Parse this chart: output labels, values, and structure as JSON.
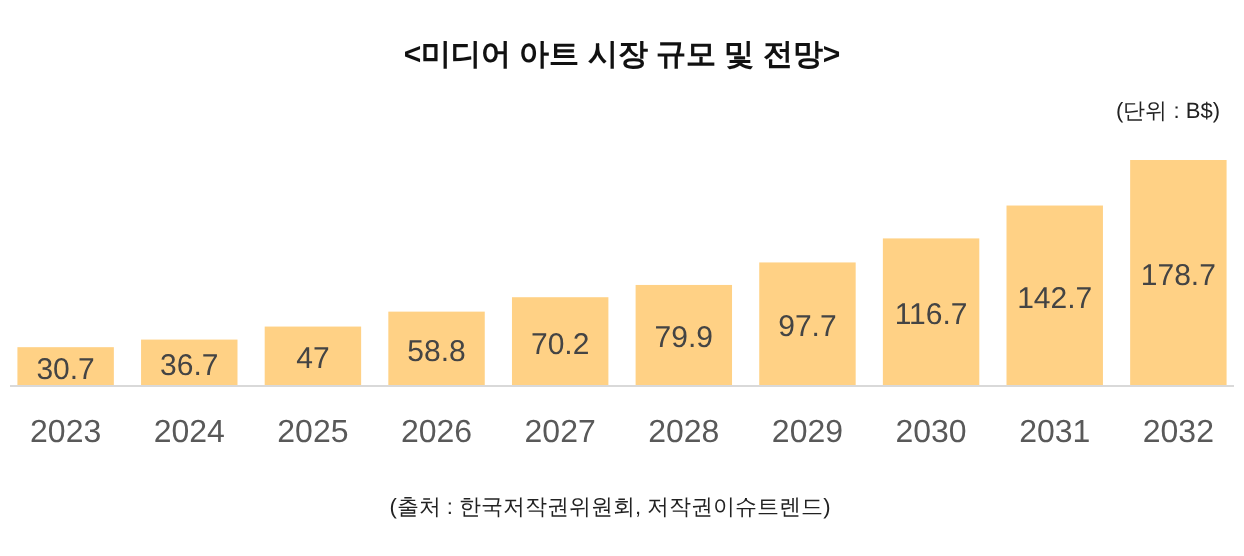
{
  "chart_data": {
    "type": "bar",
    "title": "<미디어 아트 시장 규모 및 전망>",
    "subtitle": "(단위 : B$)",
    "categories": [
      "2023",
      "2024",
      "2025",
      "2026",
      "2027",
      "2028",
      "2029",
      "2030",
      "2031",
      "2032"
    ],
    "values": [
      30.7,
      36.7,
      47,
      58.8,
      70.2,
      79.9,
      97.7,
      116.7,
      142.7,
      178.7
    ],
    "color": "#ffd185",
    "data_labels": true,
    "annotations": [
      "(출처 : 한국저작권위원회, 저작권이슈트렌드)"
    ]
  }
}
